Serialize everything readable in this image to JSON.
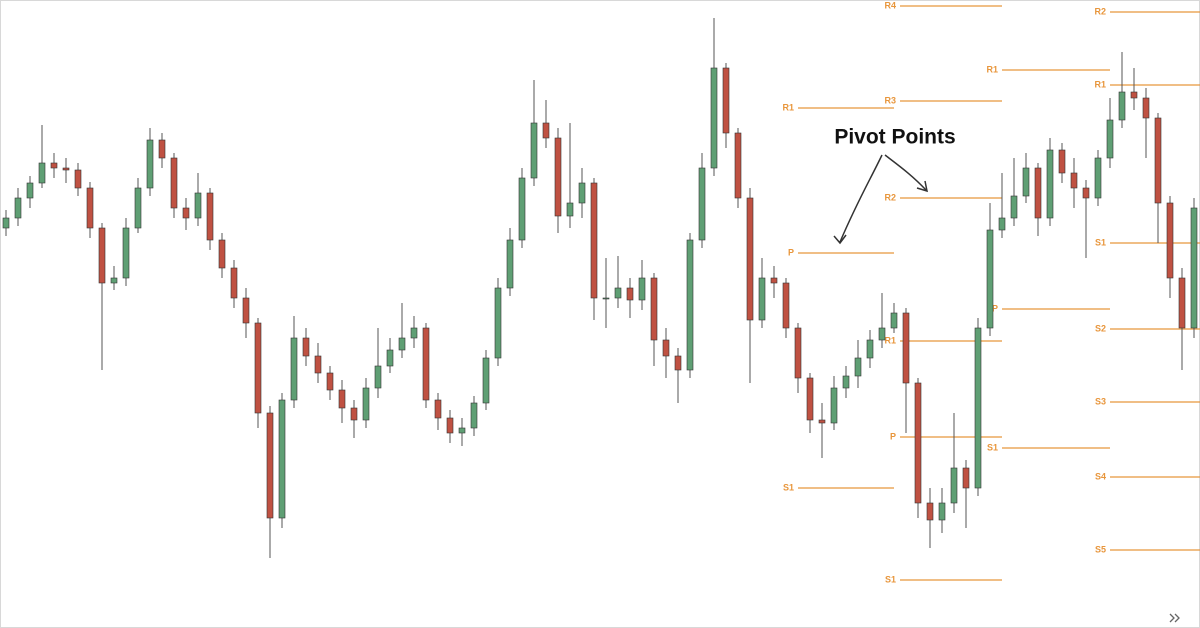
{
  "chart_data": {
    "type": "candlestick",
    "annotation": "Pivot Points",
    "xlim": [
      -0.5,
      99.5
    ],
    "ylim": [
      0,
      628
    ],
    "up_color": "#5f9f74",
    "down_color": "#bf5142",
    "pivot_color": "#e8963c",
    "open": [
      400,
      410,
      430,
      445,
      465,
      460,
      458,
      440,
      400,
      345,
      350,
      400,
      440,
      488,
      470,
      420,
      410,
      435,
      388,
      360,
      330,
      305,
      215,
      110,
      228,
      290,
      272,
      255,
      238,
      220,
      208,
      240,
      262,
      278,
      290,
      300,
      228,
      210,
      195,
      200,
      225,
      270,
      340,
      388,
      450,
      505,
      490,
      412,
      425,
      445,
      330,
      330,
      340,
      328,
      350,
      288,
      272,
      258,
      388,
      460,
      560,
      495,
      430,
      308,
      350,
      345,
      300,
      250,
      208,
      205,
      240,
      252,
      270,
      288,
      300,
      315,
      245,
      125,
      108,
      125,
      160,
      140,
      300,
      398,
      410,
      432,
      460,
      410,
      478,
      455,
      440,
      430,
      470,
      508,
      536,
      530,
      510,
      425,
      350,
      300
    ],
    "high": [
      418,
      440,
      452,
      503,
      475,
      470,
      465,
      446,
      405,
      362,
      410,
      450,
      500,
      495,
      475,
      430,
      455,
      440,
      395,
      368,
      340,
      310,
      222,
      235,
      312,
      300,
      285,
      262,
      248,
      228,
      250,
      300,
      290,
      325,
      312,
      305,
      235,
      218,
      210,
      232,
      278,
      350,
      400,
      460,
      548,
      528,
      500,
      505,
      460,
      450,
      370,
      372,
      350,
      368,
      355,
      300,
      280,
      395,
      475,
      610,
      565,
      500,
      440,
      370,
      362,
      350,
      305,
      255,
      225,
      252,
      262,
      288,
      298,
      335,
      325,
      320,
      250,
      140,
      140,
      215,
      168,
      310,
      425,
      455,
      470,
      475,
      465,
      490,
      485,
      470,
      448,
      478,
      530,
      576,
      560,
      540,
      515,
      432,
      360,
      430
    ],
    "low": [
      392,
      402,
      420,
      440,
      450,
      445,
      432,
      390,
      258,
      338,
      342,
      395,
      432,
      460,
      410,
      398,
      402,
      378,
      350,
      320,
      290,
      200,
      70,
      100,
      220,
      262,
      245,
      228,
      205,
      190,
      200,
      230,
      255,
      270,
      280,
      220,
      198,
      185,
      182,
      192,
      218,
      262,
      332,
      380,
      442,
      480,
      395,
      400,
      410,
      308,
      300,
      320,
      310,
      318,
      262,
      250,
      225,
      250,
      380,
      452,
      480,
      420,
      245,
      300,
      330,
      290,
      235,
      195,
      170,
      198,
      230,
      240,
      260,
      280,
      295,
      195,
      110,
      80,
      95,
      115,
      100,
      132,
      292,
      390,
      402,
      425,
      392,
      402,
      445,
      420,
      370,
      422,
      460,
      500,
      518,
      470,
      385,
      330,
      258,
      290
    ],
    "close": [
      410,
      430,
      445,
      465,
      460,
      458,
      440,
      400,
      345,
      350,
      400,
      440,
      488,
      470,
      420,
      410,
      435,
      388,
      360,
      330,
      305,
      215,
      110,
      228,
      290,
      272,
      255,
      238,
      220,
      208,
      240,
      262,
      278,
      290,
      300,
      228,
      210,
      195,
      200,
      225,
      270,
      340,
      388,
      450,
      505,
      490,
      412,
      425,
      445,
      330,
      330,
      340,
      328,
      350,
      288,
      272,
      258,
      388,
      460,
      560,
      495,
      430,
      308,
      350,
      345,
      300,
      250,
      208,
      205,
      240,
      252,
      270,
      288,
      300,
      315,
      245,
      125,
      108,
      125,
      160,
      140,
      300,
      398,
      410,
      432,
      460,
      410,
      478,
      455,
      440,
      430,
      470,
      508,
      536,
      530,
      510,
      425,
      350,
      300,
      420
    ],
    "pivots": [
      {
        "start": 66,
        "end": 74,
        "levels": [
          {
            "label": "R1",
            "value": 520
          },
          {
            "label": "P",
            "value": 375
          },
          {
            "label": "S1",
            "value": 140
          }
        ]
      },
      {
        "start": 74.5,
        "end": 83,
        "levels": [
          {
            "label": "R4",
            "value": 622
          },
          {
            "label": "R3",
            "value": 527
          },
          {
            "label": "R2",
            "value": 430
          },
          {
            "label": "R1",
            "value": 287
          },
          {
            "label": "P",
            "value": 191
          },
          {
            "label": "S1",
            "value": 48
          }
        ]
      },
      {
        "start": 83,
        "end": 92,
        "levels": [
          {
            "label": "R1",
            "value": 558
          },
          {
            "label": "P",
            "value": 319
          },
          {
            "label": "S1",
            "value": 180
          }
        ]
      },
      {
        "start": 92,
        "end": 99.5,
        "levels": [
          {
            "label": "R2",
            "value": 616
          },
          {
            "label": "R1",
            "value": 543
          },
          {
            "label": "S1",
            "value": 385
          },
          {
            "label": "S2",
            "value": 299
          },
          {
            "label": "S3",
            "value": 226
          },
          {
            "label": "S4",
            "value": 151
          },
          {
            "label": "S5",
            "value": 78
          }
        ]
      }
    ]
  }
}
